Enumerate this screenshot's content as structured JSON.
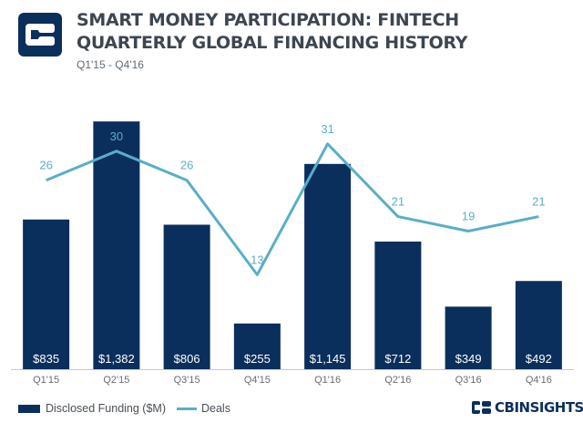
{
  "header": {
    "title": "SMART MONEY PARTICIPATION: FINTECH QUARTERLY GLOBAL FINANCING HISTORY",
    "subtitle": "Q1'15 - Q4'16"
  },
  "colors": {
    "bar": "#0b2f5c",
    "line": "#5aaec8",
    "bar_label": "#ffffff",
    "axis": "#c9c9c9"
  },
  "legend": {
    "bars": "Disclosed Funding ($M)",
    "line": "Deals"
  },
  "brand": {
    "name": "CBINSIGHTS",
    "icon": "cb-logo-icon"
  },
  "chart_data": {
    "type": "bar",
    "title": "SMART MONEY PARTICIPATION: FINTECH QUARTERLY GLOBAL FINANCING HISTORY",
    "subtitle": "Q1'15 - Q4'16",
    "categories": [
      "Q1'15",
      "Q2'15",
      "Q3'15",
      "Q4'15",
      "Q1'16",
      "Q2'16",
      "Q3'16",
      "Q4'16"
    ],
    "series": [
      {
        "name": "Disclosed Funding ($M)",
        "type": "bar",
        "values": [
          835,
          1382,
          806,
          255,
          1145,
          712,
          349,
          492
        ],
        "labels": [
          "$835",
          "$1,382",
          "$806",
          "$255",
          "$1,145",
          "$712",
          "$349",
          "$492"
        ]
      },
      {
        "name": "Deals",
        "type": "line",
        "axis": "secondary",
        "values": [
          26,
          30,
          26,
          13,
          31,
          21,
          19,
          21
        ],
        "labels": [
          "26",
          "30",
          "26",
          "13",
          "31",
          "21",
          "19",
          "21"
        ]
      }
    ],
    "ylim": [
      0,
      1500
    ],
    "y2lim": [
      0,
      37
    ],
    "xlabel": "",
    "ylabel": "",
    "grid": false,
    "legend_position": "bottom-left"
  }
}
